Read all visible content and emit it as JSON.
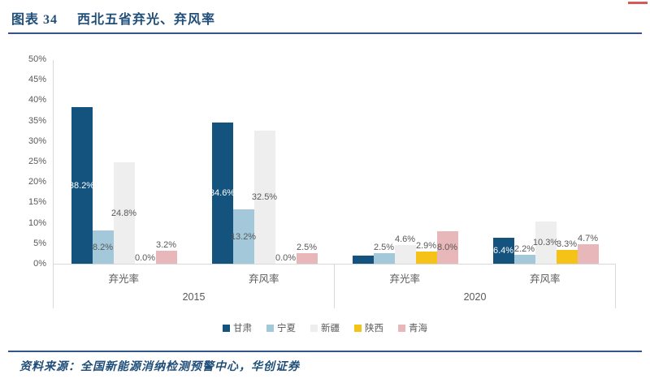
{
  "figure": {
    "label": "图表 34",
    "title": "西北五省弃光、弃风率",
    "source": "资料来源：全国新能源消纳检测预警中心，华创证券"
  },
  "colors": {
    "accent_line": "#34558B",
    "title_text": "#1F4E79",
    "axis_text": "#595959",
    "axis_line": "#D9D9D9",
    "corner_mark": "#C00000",
    "inside_label_on_dark": "#FFFFFF"
  },
  "chart_data": {
    "type": "bar",
    "title": "西北五省弃光、弃风率",
    "ylabel": "",
    "xlabel": "",
    "ylim": [
      0,
      50
    ],
    "ytick_step": 5,
    "ytick_labels": [
      "0%",
      "5%",
      "10%",
      "15%",
      "20%",
      "25%",
      "30%",
      "35%",
      "40%",
      "45%",
      "50%"
    ],
    "grid": false,
    "legend_position": "bottom",
    "series_names": [
      "甘肃",
      "宁夏",
      "新疆",
      "陕西",
      "青海"
    ],
    "series_colors": [
      "#14537E",
      "#A2C8DA",
      "#EFEEEE",
      "#F5C318",
      "#E8B7B9"
    ],
    "period_labels": [
      "2015",
      "2020"
    ],
    "groups": [
      {
        "period": "2015",
        "metric": "弃光率",
        "values": [
          38.2,
          8.2,
          24.8,
          0.0,
          3.2
        ],
        "labels": [
          "38.2%",
          "8.2%",
          "24.8%",
          "0.0%",
          "3.2%"
        ]
      },
      {
        "period": "2015",
        "metric": "弃风率",
        "values": [
          34.6,
          13.2,
          32.5,
          0.0,
          2.5
        ],
        "labels": [
          "34.6%",
          "13.2%",
          "32.5%",
          "0.0%",
          "2.5%"
        ]
      },
      {
        "period": "2020",
        "metric": "弃光率",
        "values": [
          2.0,
          2.5,
          4.6,
          2.9,
          8.0
        ],
        "labels": [
          "",
          "2.5%",
          "4.6%",
          "2.9%",
          "8.0%"
        ]
      },
      {
        "period": "2020",
        "metric": "弃风率",
        "values": [
          6.4,
          2.2,
          10.3,
          3.3,
          4.7
        ],
        "labels": [
          "6.4%",
          "2.2%",
          "10.3%",
          "3.3%",
          "4.7%"
        ]
      }
    ]
  }
}
